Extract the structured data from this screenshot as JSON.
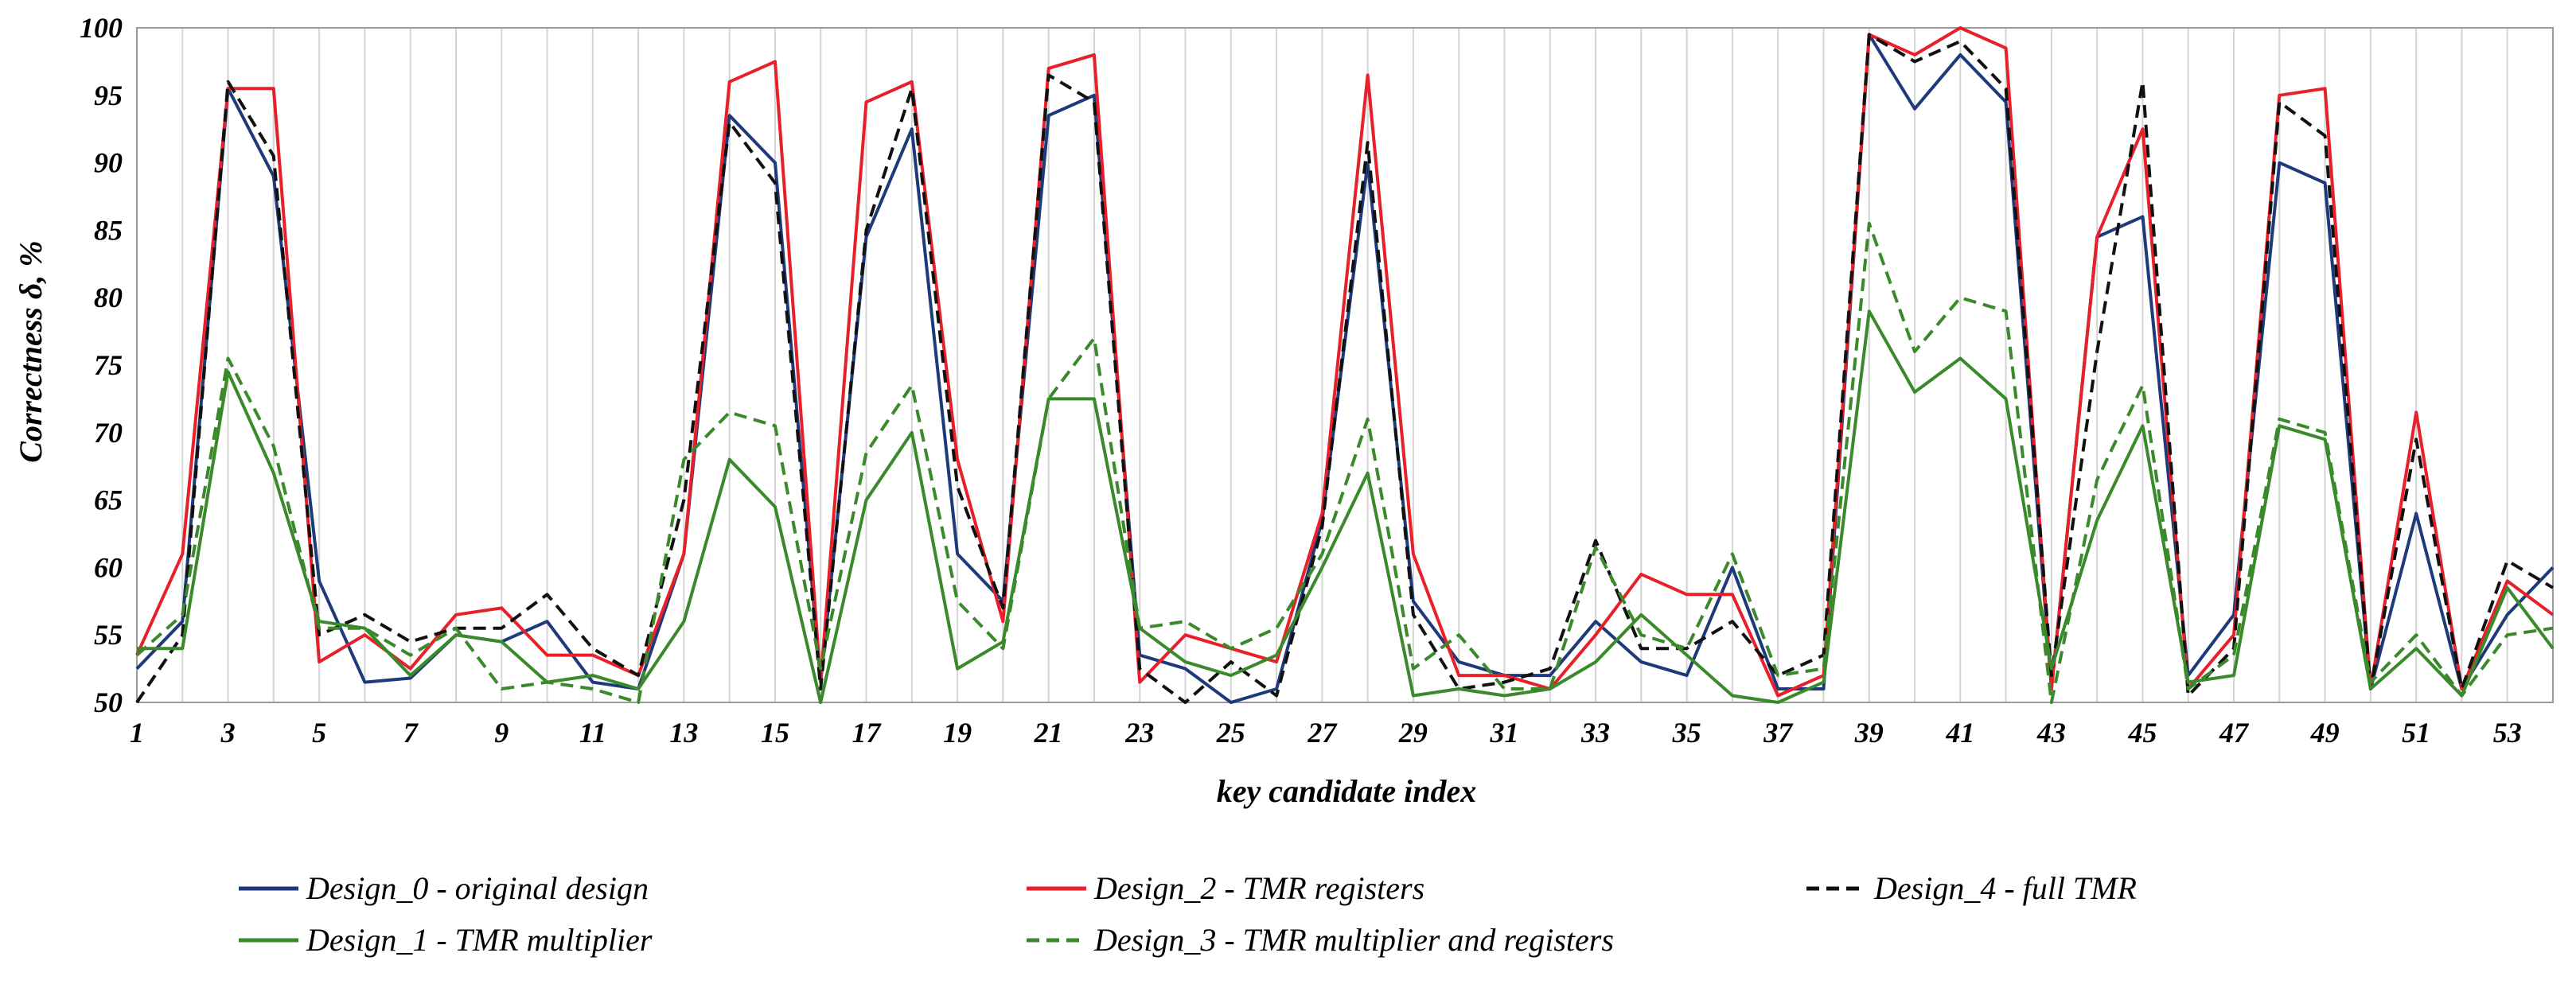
{
  "chart_data": {
    "type": "line",
    "xlabel": "key candidate index",
    "ylabel": "Correctness  δ, %",
    "ylim": [
      50,
      100
    ],
    "yticks": [
      50,
      55,
      60,
      65,
      70,
      75,
      80,
      85,
      90,
      95,
      100
    ],
    "xticks": [
      1,
      3,
      5,
      7,
      9,
      11,
      13,
      15,
      17,
      19,
      21,
      23,
      25,
      27,
      29,
      31,
      33,
      35,
      37,
      39,
      41,
      43,
      45,
      47,
      49,
      51,
      53
    ],
    "x_range": [
      1,
      54
    ],
    "grid": "vertical",
    "legend_position": "bottom",
    "x": [
      1,
      2,
      3,
      4,
      5,
      6,
      7,
      8,
      9,
      10,
      11,
      12,
      13,
      14,
      15,
      16,
      17,
      18,
      19,
      20,
      21,
      22,
      23,
      24,
      25,
      26,
      27,
      28,
      29,
      30,
      31,
      32,
      33,
      34,
      35,
      36,
      37,
      38,
      39,
      40,
      41,
      42,
      43,
      44,
      45,
      46,
      47,
      48,
      49,
      50,
      51,
      52,
      53,
      54
    ],
    "series": [
      {
        "name": "Design_0 - original design",
        "color": "#1f3a7a",
        "dash": "solid",
        "values": [
          52.5,
          56.0,
          95.5,
          89.0,
          59.0,
          51.5,
          51.8,
          55.0,
          54.5,
          56.0,
          51.5,
          51.0,
          61.0,
          93.5,
          90.0,
          51.5,
          84.5,
          92.5,
          61.0,
          57.5,
          93.5,
          95.0,
          53.5,
          52.5,
          50.0,
          51.0,
          63.5,
          90.0,
          57.5,
          53.0,
          52.0,
          52.0,
          56.0,
          53.0,
          52.0,
          60.0,
          51.0,
          51.0,
          99.5,
          94.0,
          98.0,
          94.5,
          51.0,
          84.5,
          86.0,
          52.0,
          56.5,
          90.0,
          88.5,
          51.0,
          64.0,
          51.0,
          56.5,
          60.0
        ]
      },
      {
        "name": "Design_2 - TMR registers",
        "color": "#e8202a",
        "dash": "solid",
        "values": [
          53.5,
          61.0,
          95.5,
          95.5,
          53.0,
          55.0,
          52.5,
          56.5,
          57.0,
          53.5,
          53.5,
          52.0,
          61.0,
          96.0,
          97.5,
          51.5,
          94.5,
          96.0,
          68.0,
          56.0,
          97.0,
          98.0,
          51.5,
          55.0,
          54.0,
          53.0,
          64.0,
          96.5,
          61.0,
          52.0,
          52.0,
          51.0,
          55.0,
          59.5,
          58.0,
          58.0,
          50.5,
          52.0,
          99.5,
          98.0,
          100.0,
          98.5,
          51.0,
          84.5,
          92.5,
          51.0,
          55.0,
          95.0,
          95.5,
          51.0,
          71.5,
          51.0,
          59.0,
          56.5
        ]
      },
      {
        "name": "Design_4 - full TMR",
        "color": "#111111",
        "dash": "dashed",
        "values": [
          50.0,
          55.0,
          96.0,
          90.5,
          55.0,
          56.5,
          54.5,
          55.5,
          55.5,
          58.0,
          54.0,
          52.0,
          65.0,
          93.0,
          88.5,
          51.0,
          85.0,
          95.5,
          66.0,
          57.0,
          96.5,
          94.5,
          52.5,
          50.0,
          53.0,
          50.5,
          63.0,
          91.5,
          56.5,
          51.0,
          51.5,
          52.5,
          62.0,
          54.0,
          54.0,
          56.0,
          52.0,
          53.5,
          99.5,
          97.5,
          99.0,
          95.5,
          52.0,
          76.0,
          96.0,
          50.5,
          54.0,
          94.5,
          92.0,
          51.0,
          69.5,
          51.0,
          60.5,
          58.5
        ]
      },
      {
        "name": "Design_1 - TMR multiplier",
        "color": "#3a8a2c",
        "dash": "solid",
        "values": [
          54.0,
          54.0,
          74.5,
          67.0,
          56.0,
          55.5,
          52.0,
          55.0,
          54.5,
          51.5,
          52.0,
          51.0,
          56.0,
          68.0,
          64.5,
          50.0,
          65.0,
          70.0,
          52.5,
          54.5,
          72.5,
          72.5,
          55.5,
          53.0,
          52.0,
          53.5,
          60.0,
          67.0,
          50.5,
          51.0,
          50.5,
          51.0,
          53.0,
          56.5,
          53.5,
          50.5,
          50.0,
          51.5,
          79.0,
          73.0,
          75.5,
          72.5,
          52.5,
          63.5,
          70.5,
          51.5,
          52.0,
          70.5,
          69.5,
          51.0,
          54.0,
          50.5,
          58.5,
          54.0
        ]
      },
      {
        "name": "Design_3 - TMR multiplier and registers",
        "color": "#3a8a2c",
        "dash": "dashed",
        "values": [
          53.5,
          56.5,
          75.5,
          69.0,
          55.5,
          55.5,
          53.5,
          55.5,
          51.0,
          51.5,
          51.0,
          50.0,
          68.0,
          71.5,
          70.5,
          52.5,
          68.5,
          73.5,
          57.5,
          54.0,
          72.5,
          77.0,
          55.5,
          56.0,
          54.0,
          55.5,
          61.0,
          71.0,
          52.5,
          55.0,
          51.0,
          51.0,
          61.5,
          55.0,
          54.0,
          61.0,
          52.0,
          52.5,
          85.5,
          76.0,
          80.0,
          79.0,
          50.0,
          66.5,
          73.5,
          51.0,
          53.5,
          71.0,
          70.0,
          51.5,
          55.0,
          50.5,
          55.0,
          55.5
        ]
      }
    ]
  }
}
